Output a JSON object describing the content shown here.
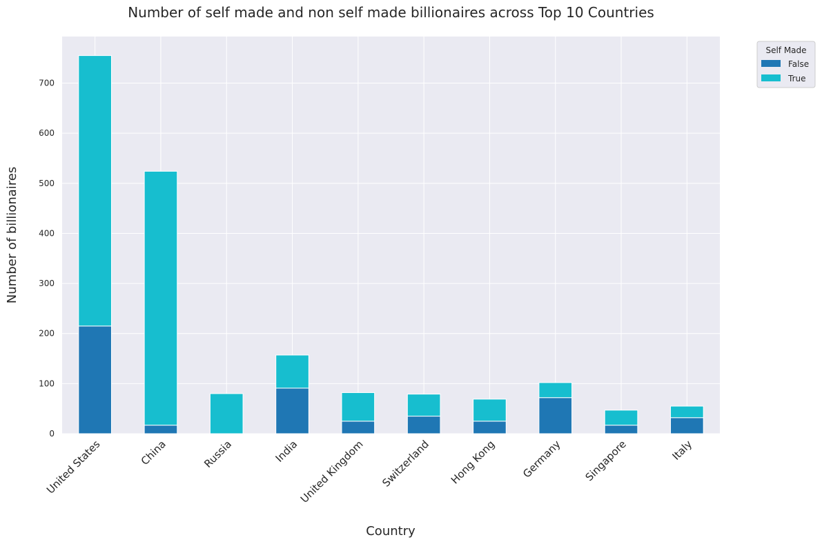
{
  "chart_data": {
    "type": "bar",
    "stacked": true,
    "title": "Number of self made and non self made billionaires across Top 10 Countries",
    "xlabel": "Country",
    "ylabel": "Number of billionaires",
    "categories": [
      "United States",
      "China",
      "Russia",
      "India",
      "United Kingdom",
      "Switzerland",
      "Hong Kong",
      "Germany",
      "Singapore",
      "Italy"
    ],
    "series": [
      {
        "name": "False",
        "color": "#1f77b4",
        "values": [
          215,
          17,
          0,
          91,
          25,
          35,
          25,
          72,
          17,
          32
        ]
      },
      {
        "name": "True",
        "color": "#17becf",
        "values": [
          540,
          507,
          80,
          66,
          57,
          44,
          44,
          30,
          30,
          23
        ]
      }
    ],
    "ylim": [
      0,
      793
    ],
    "yticks": [
      0,
      100,
      200,
      300,
      400,
      500,
      600,
      700
    ],
    "grid": true,
    "legend": {
      "title": "Self Made",
      "placement": "outside top-right"
    }
  }
}
